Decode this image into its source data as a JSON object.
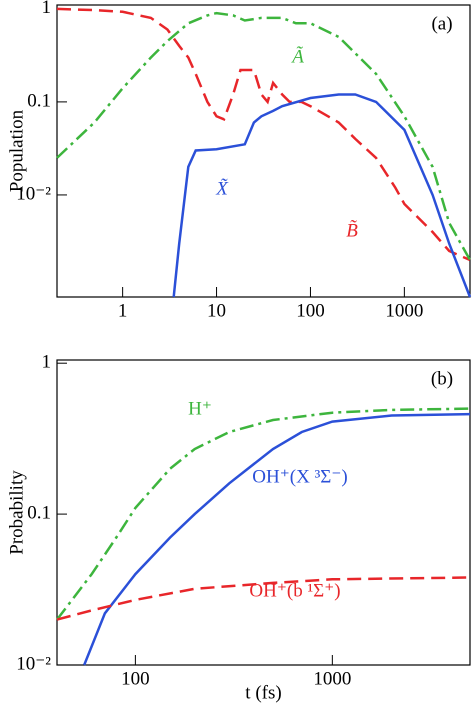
{
  "chart_data": [
    {
      "type": "line",
      "panel_label": "(a)",
      "ylabel": "Population",
      "log_x": true,
      "log_y": true,
      "xlim": [
        0.2,
        5000
      ],
      "ylim": [
        0.0008,
        1.1
      ],
      "xticks": [
        1,
        10,
        100,
        1000
      ],
      "yticks": [
        {
          "value": 0.01,
          "label": "10⁻²"
        },
        0.1,
        1
      ],
      "series": [
        {
          "name": "B̃",
          "color": "#e8262a",
          "linestyle": "dashed",
          "x": [
            0.2,
            0.5,
            1,
            2,
            3,
            4,
            5,
            6,
            8,
            10,
            12,
            15,
            18,
            25,
            30,
            35,
            40,
            50,
            60,
            80,
            100,
            200,
            300,
            500,
            800,
            1000,
            2000,
            3000,
            5000
          ],
          "values": [
            1,
            0.97,
            0.93,
            0.8,
            0.6,
            0.4,
            0.3,
            0.2,
            0.1,
            0.07,
            0.065,
            0.12,
            0.22,
            0.22,
            0.12,
            0.1,
            0.16,
            0.12,
            0.1,
            0.1,
            0.09,
            0.06,
            0.04,
            0.025,
            0.012,
            0.008,
            0.004,
            0.0025,
            0.002
          ]
        },
        {
          "name": "Ã",
          "color": "#3db53d",
          "linestyle": "dashdot",
          "x": [
            0.2,
            0.5,
            1,
            2,
            3,
            5,
            8,
            10,
            15,
            20,
            30,
            50,
            70,
            100,
            200,
            500,
            1000,
            2000,
            3000,
            5000
          ],
          "values": [
            0.025,
            0.06,
            0.14,
            0.3,
            0.45,
            0.7,
            0.85,
            0.9,
            0.85,
            0.75,
            0.8,
            0.8,
            0.7,
            0.7,
            0.5,
            0.2,
            0.07,
            0.02,
            0.005,
            0.002
          ]
        },
        {
          "name": "X̃",
          "color": "#2b50d8",
          "linestyle": "solid",
          "x": [
            3.5,
            4,
            5,
            6,
            10,
            20,
            25,
            30,
            40,
            50,
            100,
            200,
            300,
            500,
            1000,
            2000,
            3000,
            5000
          ],
          "values": [
            0.0008,
            0.003,
            0.02,
            0.03,
            0.031,
            0.035,
            0.06,
            0.07,
            0.08,
            0.09,
            0.11,
            0.12,
            0.12,
            0.1,
            0.05,
            0.01,
            0.003,
            0.0008
          ]
        }
      ]
    },
    {
      "type": "line",
      "panel_label": "(b)",
      "ylabel": "Probability",
      "xlabel": "t (fs)",
      "log_x": true,
      "log_y": true,
      "xlim": [
        40,
        5000
      ],
      "ylim": [
        0.01,
        1.05
      ],
      "xticks": [
        100,
        1000
      ],
      "yticks": [
        {
          "value": 0.01,
          "label": "10⁻²"
        },
        0.1,
        1
      ],
      "series": [
        {
          "name": "H⁺",
          "color": "#3db53d",
          "linestyle": "dashdot",
          "x": [
            40,
            60,
            80,
            100,
            150,
            200,
            300,
            500,
            1000,
            2000,
            5000
          ],
          "values": [
            0.02,
            0.04,
            0.07,
            0.11,
            0.2,
            0.27,
            0.35,
            0.42,
            0.47,
            0.49,
            0.5
          ]
        },
        {
          "name": "OH⁺(X ³Σ⁻)",
          "color": "#2b50d8",
          "linestyle": "solid",
          "x": [
            55,
            70,
            100,
            150,
            200,
            300,
            500,
            700,
            1000,
            2000,
            5000
          ],
          "values": [
            0.01,
            0.022,
            0.04,
            0.07,
            0.1,
            0.16,
            0.27,
            0.35,
            0.41,
            0.45,
            0.46
          ]
        },
        {
          "name": "OH⁺(b ¹Σ⁺)",
          "color": "#e8262a",
          "linestyle": "dashed",
          "x": [
            40,
            60,
            100,
            200,
            500,
            1000,
            5000
          ],
          "values": [
            0.02,
            0.023,
            0.027,
            0.032,
            0.035,
            0.037,
            0.038
          ]
        }
      ]
    }
  ]
}
